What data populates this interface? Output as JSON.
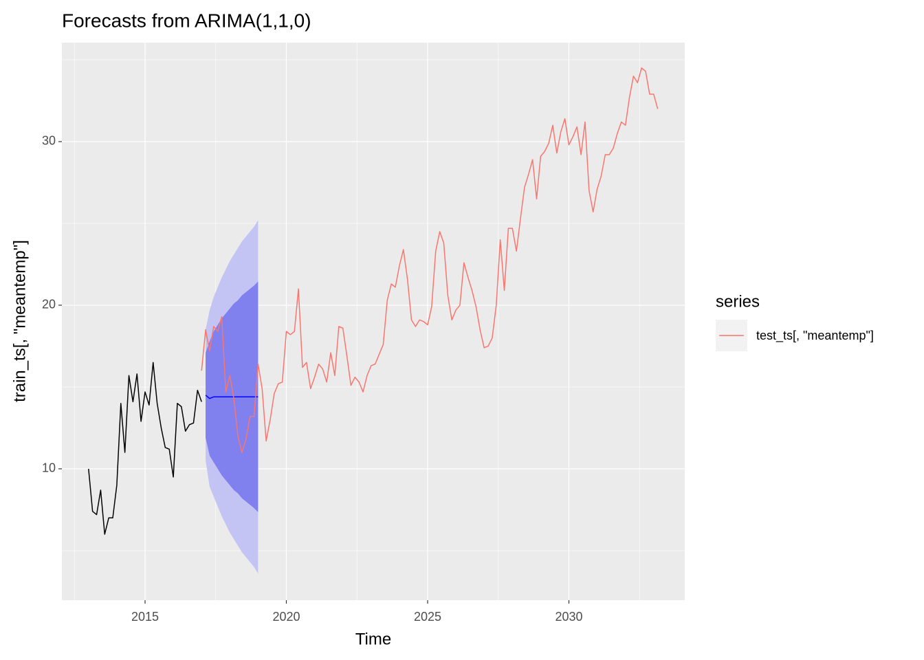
{
  "chart_data": {
    "type": "line",
    "title": "Forecasts from ARIMA(1,1,0)",
    "x_label": "Time",
    "y_label": "train_ts[, \"meantemp\"]",
    "xlim": [
      2012.056,
      2034.1
    ],
    "ylim": [
      1.97,
      36.05
    ],
    "xticks": [
      2015,
      2020,
      2025,
      2030
    ],
    "yticks": [
      10,
      20,
      30
    ],
    "xminorticks": [
      2012.5,
      2017.5,
      2022.5,
      2027.5,
      2032.5
    ],
    "yminorticks": [
      5,
      15,
      25,
      35
    ],
    "grid": true,
    "legend_title": "series",
    "legend_position": "right",
    "series": [
      {
        "color": "#000000",
        "start": 2013,
        "frequency": 7,
        "values": [
          10,
          7.4,
          7.2,
          8.7,
          6.0,
          7.0,
          7.0,
          9.0,
          14.0,
          11.0,
          15.7,
          14.1,
          15.8,
          12.9,
          14.7,
          13.9,
          16.5,
          14.0,
          12.5,
          11.3,
          11.2,
          9.5,
          14.0,
          13.8,
          12.3,
          12.7,
          12.8,
          14.8,
          14.1
        ]
      },
      {
        "name": "test_ts[, \"meantemp\"]",
        "color": "#F8766D",
        "start": 2017,
        "frequency": 7,
        "values": [
          16.0,
          18.5,
          17.2,
          18.7,
          18.4,
          19.3,
          14.7,
          15.7,
          14.3,
          12.0,
          11.0,
          11.8,
          13.2,
          13.2,
          16.4,
          14.9,
          11.7,
          13.0,
          14.6,
          15.2,
          15.3,
          18.4,
          18.2,
          18.4,
          21.0,
          16.2,
          16.5,
          14.9,
          15.6,
          16.4,
          16.1,
          15.3,
          17.1,
          15.7,
          18.7,
          18.6,
          16.9,
          15.1,
          15.6,
          15.3,
          14.7,
          15.7,
          16.3,
          16.4,
          17.0,
          17.6,
          20.3,
          21.3,
          21.1,
          22.4,
          23.4,
          21.6,
          19.1,
          18.7,
          19.1,
          19.0,
          18.8,
          19.9,
          23.3,
          24.5,
          23.8,
          20.6,
          19.1,
          19.7,
          20.0,
          22.6,
          21.7,
          20.9,
          19.9,
          18.5,
          17.4,
          17.5,
          18.0,
          20.0,
          24.0,
          20.9,
          24.7,
          24.7,
          23.3,
          25.3,
          27.2,
          28.0,
          28.9,
          26.5,
          29.1,
          29.4,
          29.9,
          31.0,
          29.3,
          30.6,
          31.4,
          29.8,
          30.3,
          30.9,
          29.2,
          31.2,
          27.0,
          25.7,
          27.1,
          27.9,
          29.2,
          29.2,
          29.6,
          30.5,
          31.2,
          31.0,
          32.7,
          34.0,
          33.6,
          34.5,
          34.3,
          32.9,
          32.9,
          32.0
        ]
      }
    ],
    "forecast": {
      "start": 2017.142857,
      "frequency": 7,
      "line_color": "#0000ff",
      "band80_color": "#8080ee",
      "band95_color": "#c4c4f4",
      "mean": [
        14.5,
        14.3,
        14.4,
        14.4,
        14.4,
        14.4,
        14.4,
        14.4,
        14.4,
        14.4,
        14.4,
        14.4,
        14.4,
        14.4
      ],
      "lower80": [
        11.9,
        10.8,
        10.4,
        10.0,
        9.6,
        9.3,
        9.0,
        8.7,
        8.5,
        8.2,
        8.0,
        7.8,
        7.6,
        7.35
      ],
      "upper80": [
        17.1,
        17.8,
        18.4,
        18.8,
        19.2,
        19.5,
        19.8,
        20.1,
        20.3,
        20.6,
        20.8,
        21.0,
        21.2,
        21.45
      ],
      "lower95": [
        10.5,
        8.9,
        8.3,
        7.7,
        7.1,
        6.6,
        6.1,
        5.7,
        5.3,
        4.9,
        4.6,
        4.3,
        4.0,
        3.6
      ],
      "upper95": [
        18.5,
        19.7,
        20.5,
        21.1,
        21.7,
        22.2,
        22.7,
        23.1,
        23.5,
        23.9,
        24.2,
        24.5,
        24.8,
        25.2
      ]
    }
  }
}
